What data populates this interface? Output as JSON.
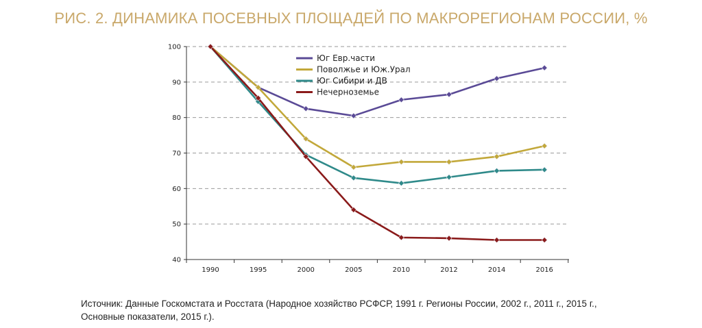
{
  "title": "РИС. 2. ДИНАМИКА ПОСЕВНЫХ ПЛОЩАДЕЙ ПО МАКРОРЕГИОНАМ РОССИИ, %",
  "source": "Источник: Данные Госкомстата и Росстата (Народное хозяйство РСФСР, 1991 г. Регионы России, 2002 г., 2011 г., 2015 г., Основные показатели, 2015 г.).",
  "chart_data": {
    "type": "line",
    "title": "РИС. 2. ДИНАМИКА ПОСЕВНЫХ ПЛОЩАДЕЙ ПО МАКРОРЕГИОНАМ РОССИИ, %",
    "xlabel": "",
    "ylabel": "",
    "categories": [
      "1990",
      "1995",
      "2000",
      "2005",
      "2010",
      "2012",
      "2014",
      "2016"
    ],
    "ylim": [
      40,
      100
    ],
    "yticks": [
      40,
      50,
      60,
      70,
      80,
      90,
      100
    ],
    "grid": "horizontal dashed",
    "legend_position": "top-center",
    "series": [
      {
        "name": "Юг Евр.части",
        "color": "#5a4a96",
        "values": [
          100,
          88.5,
          82.5,
          80.5,
          85,
          86.5,
          91,
          94
        ]
      },
      {
        "name": "Поволжье и Юж.Урал",
        "color": "#c2a83a",
        "values": [
          100,
          88.5,
          74,
          66,
          67.5,
          67.5,
          69,
          72
        ]
      },
      {
        "name": "Юг Сибири и ДВ",
        "color": "#2f8a8a",
        "values": [
          100,
          84.5,
          69.5,
          63,
          61.5,
          63.2,
          65,
          65.3
        ]
      },
      {
        "name": "Нечерноземье",
        "color": "#8a1a1a",
        "values": [
          100,
          85.5,
          69,
          54,
          46.2,
          46,
          45.5,
          45.5
        ]
      }
    ]
  }
}
